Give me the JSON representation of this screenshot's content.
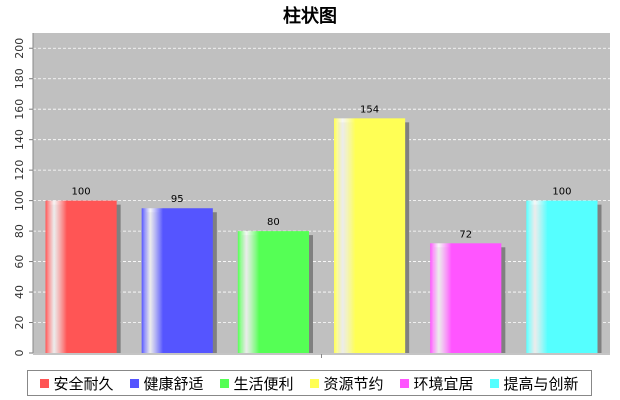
{
  "chart_data": {
    "type": "bar",
    "title": "柱状图",
    "xlabel": "",
    "ylabel": "",
    "categories": [
      "安全耐久",
      "健康舒适",
      "生活便利",
      "资源节约",
      "环境宜居",
      "提高与创新"
    ],
    "values": [
      100,
      95,
      80,
      154,
      72,
      100
    ],
    "colors": [
      "#ff5555",
      "#5555ff",
      "#55ff55",
      "#ffff55",
      "#ff55ff",
      "#55ffff"
    ],
    "ylim": [
      0,
      210
    ],
    "yticks": [
      0,
      20,
      40,
      60,
      80,
      100,
      120,
      140,
      160,
      180,
      200
    ],
    "grid": true,
    "legend_position": "bottom",
    "plot_background": "#c0c0c0"
  }
}
